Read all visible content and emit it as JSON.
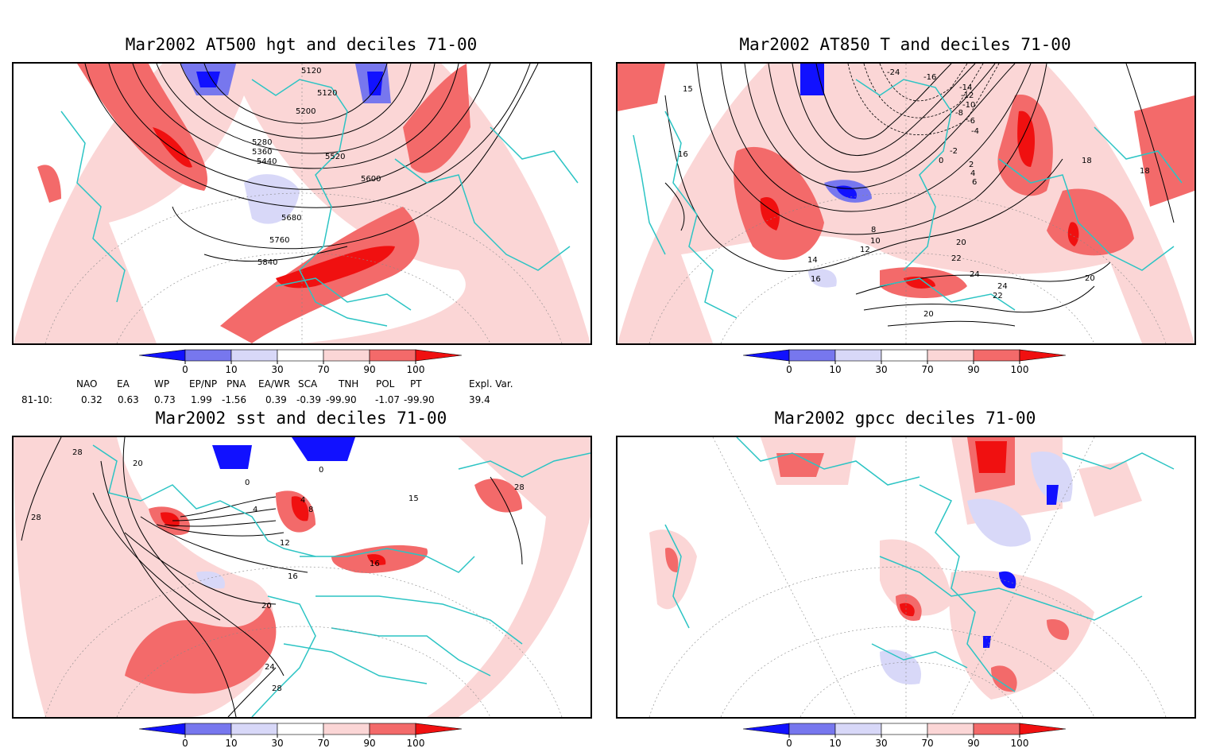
{
  "panels": [
    {
      "title": "Mar2002 AT500 hgt and deciles 71-00",
      "contour_labels": [
        "5120",
        "5120",
        "5200",
        "5280",
        "5360",
        "5440",
        "5520",
        "5600",
        "5680",
        "5760",
        "5840"
      ]
    },
    {
      "title": "Mar2002 AT850 T and deciles 71-00",
      "contour_labels": [
        "15",
        "16",
        "-24",
        "-16",
        "-14",
        "-12",
        "-10",
        "-8",
        "-6",
        "-4",
        "-2",
        "0",
        "2",
        "4",
        "6",
        "8",
        "10",
        "12",
        "14",
        "16",
        "18",
        "20",
        "22",
        "24",
        "20",
        "22",
        "24",
        "20",
        "18"
      ]
    },
    {
      "title": "Mar2002 sst and deciles 71-00",
      "contour_labels": [
        "28",
        "28",
        "20",
        "0",
        "0",
        "4",
        "8",
        "4",
        "12",
        "16",
        "16",
        "20",
        "24",
        "28",
        "28",
        "15"
      ]
    },
    {
      "title": "Mar2002 gpcc deciles 71-00",
      "contour_labels": []
    }
  ],
  "colorbar": {
    "ticks": [
      "0",
      "10",
      "30",
      "70",
      "90",
      "100"
    ],
    "colors": {
      "strong_blue": "#1111ff",
      "mid_blue": "#7777ee",
      "light_blue": "#d8d8f8",
      "white": "#ffffff",
      "light_red": "#fbd6d6",
      "mid_red": "#f36a6a",
      "strong_red": "#f01010"
    }
  },
  "indices": {
    "headers": [
      "NAO",
      "EA",
      "WP",
      "EP/NP",
      "PNA",
      "EA/WR",
      "SCA",
      "TNH",
      "POL",
      "PT",
      "Expl. Var."
    ],
    "row_label": "81-10:",
    "values": [
      "0.32",
      "0.63",
      "0.73",
      "1.99",
      "-1.56",
      "0.39",
      "-0.39",
      "-99.90",
      "-1.07",
      "-99.90",
      "39.4"
    ]
  },
  "colors": {
    "coast": "#2cc4c4",
    "contour": "#000000",
    "grid": "#888888"
  }
}
